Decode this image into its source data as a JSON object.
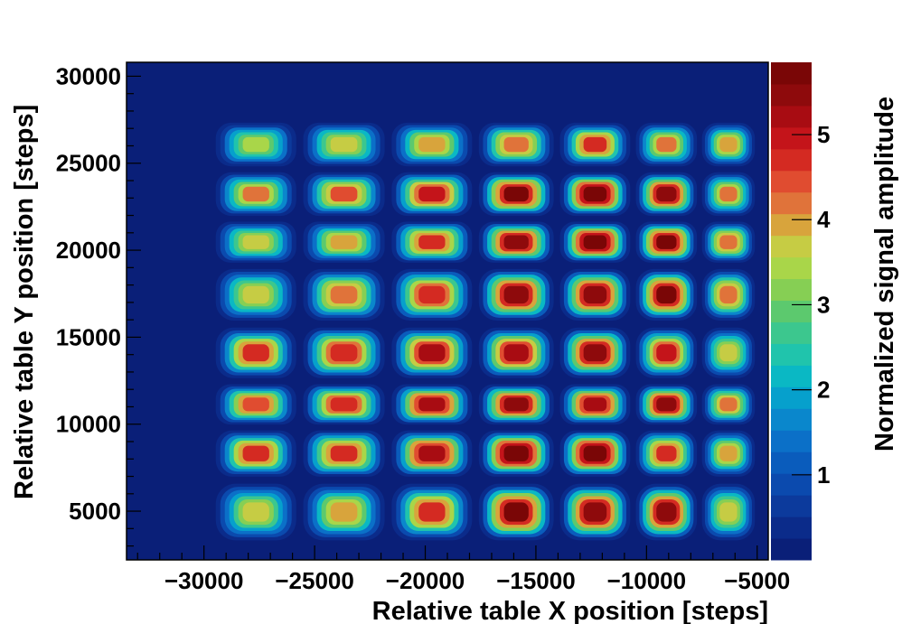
{
  "chart_data": {
    "type": "heatmap",
    "title": "",
    "xlabel": "Relative table X position [steps]",
    "ylabel": "Relative table Y position [steps]",
    "zlabel": "Normalized signal amplitude",
    "xlim": [
      -33500,
      -4500
    ],
    "ylim": [
      2200,
      30800
    ],
    "zlim": [
      0,
      5.85
    ],
    "x_ticks": [
      -30000,
      -25000,
      -20000,
      -15000,
      -10000,
      -5000
    ],
    "x_tick_labels": [
      "−30000",
      "−25000",
      "−20000",
      "−15000",
      "−10000",
      "−5000"
    ],
    "y_ticks": [
      5000,
      10000,
      15000,
      20000,
      25000,
      30000
    ],
    "y_tick_labels": [
      "5000",
      "10000",
      "15000",
      "20000",
      "25000",
      "30000"
    ],
    "z_ticks": [
      1,
      2,
      3,
      4,
      5
    ],
    "z_tick_labels": [
      "1",
      "2",
      "3",
      "4",
      "5"
    ],
    "grid": false,
    "palette": [
      "#0a1f78",
      "#0b2b8a",
      "#0c3a9c",
      "#0b4aae",
      "#0a5cbc",
      "#0b70c8",
      "#0a87cc",
      "#06a0cc",
      "#0ab8c4",
      "#20c4ac",
      "#3cc78e",
      "#5cc96e",
      "#86cf54",
      "#a9d649",
      "#c6cc44",
      "#d8a43c",
      "#e0733a",
      "#e04c30",
      "#d42a22",
      "#c4141a",
      "#a80c12",
      "#8e0a0c",
      "#7a0606"
    ],
    "x_cells": [
      -27650,
      -23700,
      -19650,
      -15800,
      -12300,
      -8900,
      -6300
    ],
    "y_cells": [
      5100,
      8500,
      11150,
      13750,
      17750,
      20500,
      23100,
      26200
    ],
    "cell_peak_values": [
      [
        3.6,
        4.0,
        4.6,
        5.6,
        5.5,
        5.4,
        3.8
      ],
      [
        4.6,
        4.7,
        5.3,
        5.7,
        5.8,
        4.7,
        3.9
      ],
      [
        4.5,
        4.8,
        5.3,
        5.5,
        5.3,
        5.4,
        4.2
      ],
      [
        4.6,
        4.8,
        5.2,
        5.2,
        5.5,
        4.9,
        3.8
      ],
      [
        3.7,
        4.3,
        4.8,
        5.4,
        5.5,
        5.6,
        4.3
      ],
      [
        3.7,
        3.9,
        4.7,
        5.4,
        5.7,
        5.6,
        4.3
      ],
      [
        4.1,
        4.4,
        5.0,
        5.6,
        5.7,
        5.5,
        4.1
      ],
      [
        3.4,
        3.8,
        4.0,
        4.3,
        4.6,
        4.1,
        3.9
      ]
    ]
  }
}
